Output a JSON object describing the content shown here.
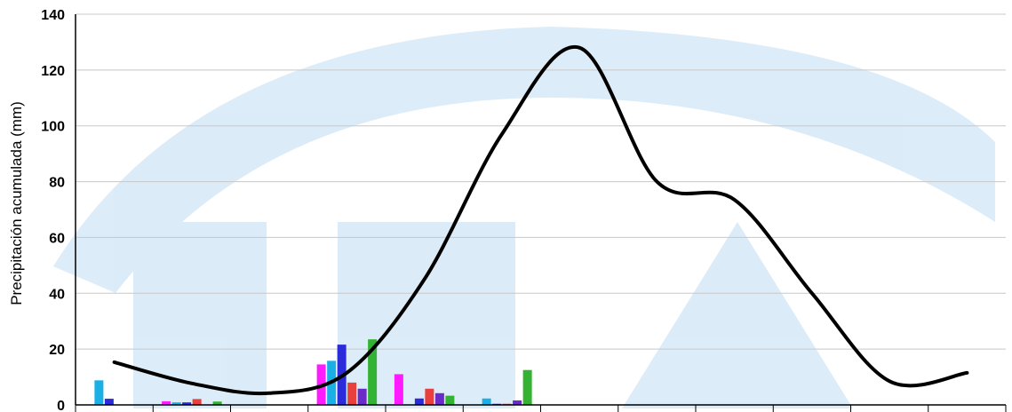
{
  "chart_data": {
    "type": "bar",
    "ylabel": "Precipitación acumulada (mm)",
    "ylim": [
      0,
      140
    ],
    "yticks": [
      0,
      20,
      40,
      60,
      80,
      100,
      120,
      140
    ],
    "grid": true,
    "months": 12,
    "bar_colors": [
      "#ff1aff",
      "#1ab0e6",
      "#2b2bd9",
      "#e8403c",
      "#6b2bc8",
      "#33b233"
    ],
    "bar_series": [
      {
        "values": [
          0,
          1.3,
          0,
          14.5,
          11,
          0,
          0,
          0,
          0,
          0,
          0,
          0
        ]
      },
      {
        "values": [
          8.8,
          0.9,
          0,
          15.8,
          0,
          2.3,
          0,
          0,
          0,
          0,
          0,
          0
        ]
      },
      {
        "values": [
          2.2,
          0.9,
          0,
          21.6,
          2.3,
          0.4,
          0,
          0,
          0,
          0,
          0,
          0
        ]
      },
      {
        "values": [
          0,
          2.1,
          0,
          8,
          5.8,
          0.4,
          0,
          0,
          0,
          0,
          0,
          0
        ]
      },
      {
        "values": [
          0,
          0,
          0,
          5.8,
          4.2,
          1.6,
          0,
          0,
          0,
          0,
          0,
          0
        ]
      },
      {
        "values": [
          0,
          1.2,
          0,
          23.5,
          3.3,
          12.5,
          0,
          0,
          0,
          0,
          0,
          0
        ]
      }
    ],
    "line_color": "#000000",
    "line_values": [
      15.3,
      7.7,
      4.2,
      11.5,
      45,
      97,
      128,
      80,
      73.5,
      40,
      8.5,
      11.5
    ]
  }
}
